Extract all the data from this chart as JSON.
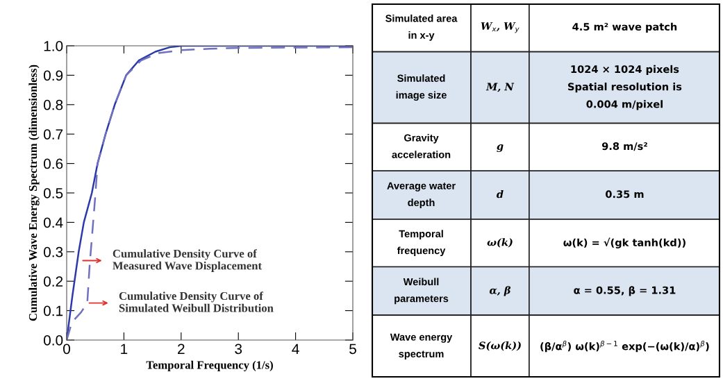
{
  "chart_data": [
    {
      "type": "line",
      "xlabel": "Temporal Frequency (1/s)",
      "ylabel": "Cumulative Wave Energy Spectrum (dimensionless)",
      "xlim": [
        0,
        5
      ],
      "ylim": [
        0,
        1.0
      ],
      "xticks": [
        0,
        1,
        2,
        3,
        4,
        5
      ],
      "yticks": [
        {
          "value": 0,
          "label": "0.0"
        },
        0.1,
        0.2,
        0.3,
        0.4,
        0.5,
        0.6,
        0.7,
        0.8,
        0.9,
        {
          "value": 1,
          "label": "1.0"
        }
      ],
      "grid": false,
      "series": [
        {
          "color": "#2b3aa8",
          "line_style": "solid",
          "x": [
            0,
            0.1,
            0.21,
            0.3,
            0.44,
            0.54,
            0.68,
            0.84,
            1.04,
            1.26,
            1.55,
            1.8,
            2.0,
            2.5,
            5
          ],
          "values": [
            0,
            0.15,
            0.3,
            0.4,
            0.5,
            0.6,
            0.7,
            0.8,
            0.9,
            0.95,
            0.98,
            0.995,
            1.0,
            1.0,
            1.0
          ]
        },
        {
          "color": "#7070c0",
          "line_style": "dashed",
          "x": [
            0,
            0.09,
            0.25,
            0.36,
            0.4,
            0.5,
            0.54,
            0.68,
            0.84,
            1.04,
            1.3,
            1.6,
            2.0,
            2.5,
            3,
            5
          ],
          "values": [
            0,
            0.06,
            0.094,
            0.126,
            0.25,
            0.49,
            0.6,
            0.7,
            0.8,
            0.9,
            0.95,
            0.975,
            0.985,
            0.99,
            0.993,
            0.995
          ]
        }
      ],
      "annotations": [
        {
          "text": "Cumulative Density Curve of\nMeasured Wave Displacement",
          "x": 0.25,
          "y": 0.27
        },
        {
          "text": "Cumulative Density Curve of\nSimulated Weibull Distribution",
          "x": 0.36,
          "y": 0.126
        }
      ]
    },
    {
      "type": "other",
      "annotations": [
        "Simulated area\nin x-y",
        "W$_{x}$, W$_{y}$",
        "4.5 m² wave patch",
        "Simulated\nimage size",
        "M, N",
        "1024 × 1024 pixels\nSpatial resolution is\n0.004 m/pixel",
        "Gravity\nacceleration",
        "g",
        "9.8 m/s²",
        "Average water\ndepth",
        "d",
        "0.35 m",
        "Temporal\nfrequency",
        "ω(k)",
        "ω(k) = √(gk tanh(kd))",
        "Weibull\nparameters",
        "α, β",
        "α = 0.55, β = 1.31",
        "Wave energy\nspectrum",
        "S(ω(k))",
        "(β/α$^{β}$) ω(k)$^{β−1}$ exp(−(ω(k)/α)$^{β}$)"
      ]
    }
  ]
}
